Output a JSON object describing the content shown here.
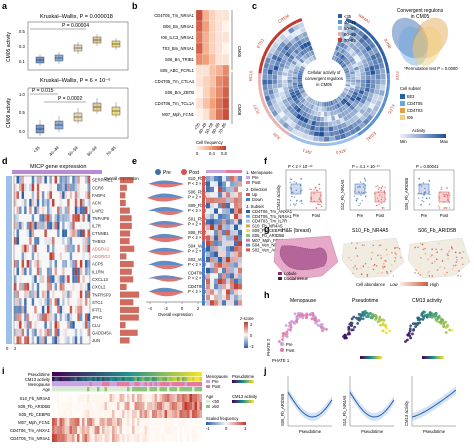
{
  "panels": {
    "a": {
      "label": "a",
      "top": {
        "title": "Kruskal–Wallis, P = 0.000018",
        "pvals": [
          "P = 0.00004"
        ],
        "ylabel": "CM05 activity",
        "ticks": [
          "0.5",
          "0.3",
          "0.1"
        ]
      },
      "bottom": {
        "title": "Kruskal–Wallis, P = 6 × 10⁻⁶",
        "pvals": [
          "P = 0.015",
          "P = 0.0002"
        ],
        "ylabel": "CM08 activity",
        "ticks": [
          "1.0",
          "0.5",
          "0.0"
        ]
      },
      "xcats": [
        "<35",
        "40–49",
        "50–59",
        "60–69",
        "70–85"
      ],
      "box_colors": [
        "#3b6fb6",
        "#5b8fd0",
        "#e3c99a",
        "#d9b36a",
        "#e8cf4a"
      ]
    },
    "b": {
      "label": "b",
      "rows": [
        "CD4T05_Tm_NR4A1",
        "B06_Bn_NR4A1",
        "I06_ILC3_NR4A1",
        "T03_Bm_NR4A1",
        "S06_Bn_TRIB1",
        "S05_ABC_FCRL1",
        "CD4T05_Tm_CTLA4",
        "S06_Bm_ZBTB",
        "CD4T06_Tm_TCL1A",
        "M07_Mph_FCN1"
      ],
      "cols": [
        "<35",
        "40–49",
        "50–59",
        "60–69",
        "70–85"
      ],
      "groups": [
        "CM05",
        "CM08"
      ],
      "legend": {
        "title": "Cell frequency",
        "ticks": [
          "0",
          "0.4",
          "0.8"
        ]
      },
      "values": [
        [
          0.9,
          0.4,
          0.2,
          0.1,
          0.1
        ],
        [
          0.8,
          0.5,
          0.2,
          0.1,
          0.0
        ],
        [
          0.7,
          0.4,
          0.2,
          0.1,
          0.1
        ],
        [
          0.8,
          0.4,
          0.2,
          0.1,
          0.0
        ],
        [
          0.6,
          0.5,
          0.3,
          0.1,
          0.1
        ],
        [
          0.1,
          0.1,
          0.3,
          0.4,
          0.6
        ],
        [
          0.1,
          0.2,
          0.3,
          0.6,
          0.7
        ],
        [
          0.0,
          0.2,
          0.4,
          0.6,
          0.8
        ],
        [
          0.1,
          0.3,
          0.5,
          0.7,
          0.9
        ],
        [
          0.0,
          0.1,
          0.4,
          0.7,
          0.9
        ]
      ]
    },
    "c": {
      "label": "c",
      "center_text": [
        "Cellular activity of",
        "convergent regulons",
        "in CM05"
      ],
      "ring_labels": [
        "NR4A1",
        "JUNB",
        "FOS",
        "KLF6",
        "EGR1",
        "ATF3",
        "IRF1",
        "JUN",
        "TCF7",
        "BCL6",
        "ETS1",
        "CREM"
      ],
      "age_legend": [
        "<35",
        "40–49",
        "50–59",
        "60–69",
        "70–85"
      ],
      "age_colors": [
        "#2b5fa8",
        "#5a8fd1",
        "#9cc0ea",
        "#e8b3b3",
        "#c0392b"
      ],
      "venn": {
        "title": "Convergent regulons",
        "subtitle": "in CM05",
        "note": "*Permutation test P = 0.0000"
      },
      "subset_legend": {
        "title": "Cell subset",
        "items": [
          "B03",
          "CD4T05",
          "CD4T03",
          "I06"
        ],
        "colors": [
          "#2b5fa8",
          "#6aa7e0",
          "#e3a04a",
          "#f1d07a"
        ]
      },
      "activity_legend": {
        "title": "Activity",
        "min": "Min",
        "max": "Max"
      }
    },
    "d": {
      "label": "d",
      "title": "MICP gene expression",
      "side_title": "Overall expression",
      "genes": [
        "SERPINE1",
        "CCR6",
        "FABP4",
        "ACN",
        "LAIR2",
        "TNFAIP8",
        "IL7R",
        "CTNNB1",
        "THBS2",
        "ADGRA2",
        "ADGRG3",
        "ACP5",
        "IL1RN",
        "CXCL13",
        "CXCL2",
        "TNFRSF9",
        "STC1",
        "IFIT1",
        "JPH1",
        "CLU",
        "GADD45A",
        "JUN"
      ],
      "red_genes": [
        "ADGRA2",
        "ADGRG3"
      ],
      "axis_ticks": [
        "0",
        "2"
      ]
    },
    "e": {
      "label": "e",
      "legend": [
        "Pre",
        "Post"
      ],
      "rows": [
        {
          "name": "S10_Fb_NR4A5",
          "p": "P < 2 × 10⁻¹⁶"
        },
        {
          "name": "S06_Fb_ARID5B",
          "p": "P < 2 × 10⁻¹⁶"
        },
        {
          "name": "S09_Fb_ARID5B",
          "p": "P < 2 × 10⁻¹⁶"
        },
        {
          "name": "S01_Fb_CEBPB",
          "p": "P < 2 × 10⁻¹⁶"
        },
        {
          "name": "S06_Fb_NRP3",
          "p": "P < 2 × 10⁻¹⁶"
        },
        {
          "name": "S04_Ven_NRP3",
          "p": "P < 2 × 10⁻¹⁶"
        },
        {
          "name": "S02_Ven_ACKR1",
          "p": "P < 2 × 10⁻¹⁶"
        },
        {
          "name": "CD4T06_Tm_ANXA1",
          "p": "P < 2 × 10⁻¹⁶"
        },
        {
          "name": "CD4T06_Tm_NR4A1",
          "p": "P < 2 × 10⁻¹⁶"
        }
      ],
      "xlabel": "Overall expression",
      "xticks": [
        "-4",
        "-2",
        "0",
        "2"
      ]
    },
    "e2": {
      "menopause": {
        "title": "1. Menopause",
        "items": [
          "Pre",
          "Post"
        ],
        "colors": [
          "#c8a4e0",
          "#e57aa0"
        ]
      },
      "direction": {
        "title": "2. Direction",
        "items": [
          "Up",
          "Down"
        ],
        "colors": [
          "#d9534f",
          "#4a7bc8"
        ]
      },
      "subset": {
        "title": "3. Subset",
        "items": [
          "CD4T06_Tm_ANXA1",
          "CD4T06_Tm_NR4A1",
          "CD4T03_Tm_IL7R",
          "S10_Fb_NR4A5",
          "S09_Fb_CEBPB",
          "S06_Fb_ARID5B",
          "M07_Mph_FCN1",
          "S04_Ven_NRP3",
          "S02_Ven_ACKR1"
        ]
      },
      "zscore": {
        "title": "z-score",
        "ticks": [
          "2",
          "0",
          "-2"
        ]
      }
    },
    "f": {
      "label": "f",
      "plots": [
        {
          "ylabel": "CM13 activity",
          "p": "P < 2 × 10⁻¹⁶",
          "cats": [
            "Pre",
            "Post"
          ]
        },
        {
          "ylabel": "S10_Fb_NR4A5",
          "p": "P = 4.1 × 10⁻¹⁰",
          "cats": [
            "Pre",
            "Post"
          ]
        },
        {
          "ylabel": "S06_Fb_ARID5B",
          "p": "P = 0.00041",
          "cats": [
            "Pre",
            "Post"
          ]
        }
      ],
      "colors": [
        "#3b6fb6",
        "#d9534f"
      ]
    },
    "g": {
      "label": "g",
      "titles": [
        "H&E (breast)",
        "S10_Fb_NR4A5",
        "S06_Fb_ARID5B"
      ],
      "legend": [
        "Lobule",
        "Ductal tissue"
      ],
      "scale": {
        "title": "Cell abundance",
        "low": "Low",
        "high": "High"
      }
    },
    "h": {
      "label": "h",
      "titles": [
        "Menopause",
        "Pseudotime",
        "CM13 activity"
      ],
      "legend": [
        "Pre",
        "Post"
      ],
      "axis_x": "PHATE 1",
      "axis_y": "PHATE 2"
    },
    "i": {
      "label": "i",
      "tracks": [
        "Pseudotime",
        "CM13 activity",
        "Menopause",
        "Age"
      ],
      "rows": [
        "S10_Fb_NR4A5",
        "S06_Fb_ARID5B",
        "S05_Fb_CEBPB",
        "M07_Mph_FCN1",
        "CD4T06_Tm_ANXA1",
        "CD4T05_Tm_NR4A1"
      ],
      "legend": {
        "menopause": {
          "title": "Menopause",
          "items": [
            "Pre",
            "Post"
          ]
        },
        "pseudotime": "Pseudotime",
        "age": {
          "title": "Age",
          "items": [
            "<50",
            "≥50"
          ]
        },
        "cm13": "CM13 activity",
        "scaled": {
          "title": "Scaled frequency",
          "ticks": [
            "-1",
            "0",
            "1"
          ]
        }
      }
    },
    "j": {
      "label": "j",
      "plots": [
        {
          "ylabel": "S06_Fb_ARID5B",
          "xlabel": "Pseudotime"
        },
        {
          "ylabel": "S10_Fb_NR4A5",
          "xlabel": "Pseudotime"
        },
        {
          "ylabel": "CM13 activity",
          "xlabel": "Pseudotime"
        }
      ]
    }
  },
  "colors": {
    "blue": "#3b6fb6",
    "red": "#d9534f",
    "heat_low": "#fff4ec",
    "heat_high": "#c0392b"
  }
}
